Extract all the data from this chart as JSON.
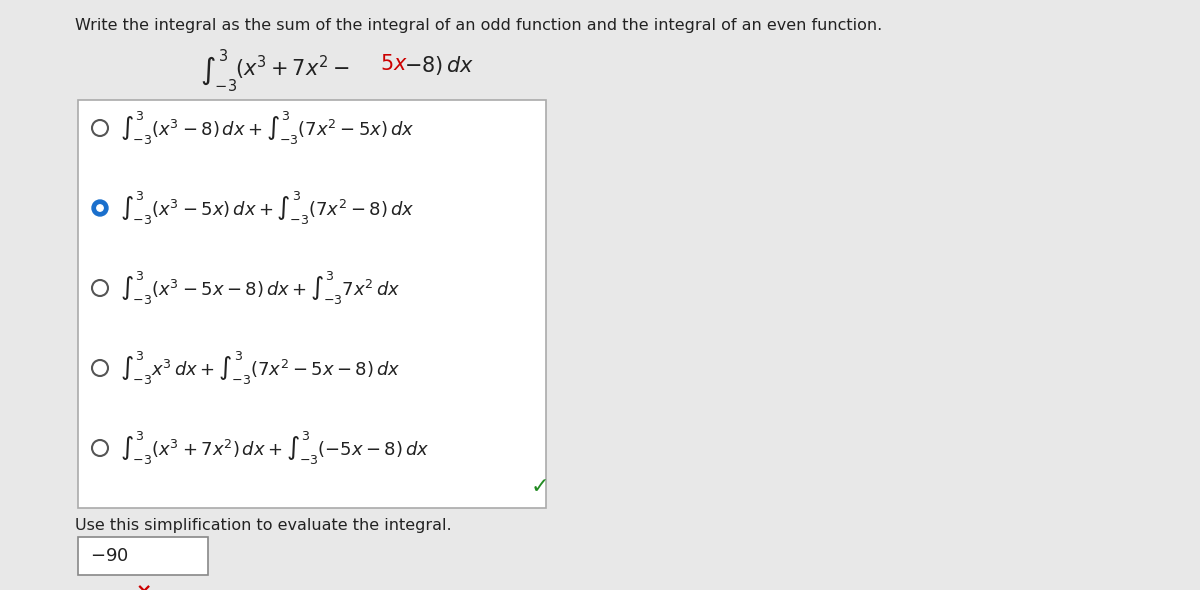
{
  "bg_color": "#e8e8e8",
  "box_bg": "#ffffff",
  "title": "Write the integral as the sum of the integral of an odd function and the integral of an even function.",
  "main_integral_parts": [
    {
      "text": "$\\int_{-3}^{3}$",
      "color": "#222222"
    },
    {
      "text": "$(x^3 + 7x^2 - $",
      "color": "#222222"
    },
    {
      "text": "$5x$",
      "color": "#cc0000"
    },
    {
      "text": "$ - 8)\\, dx$",
      "color": "#222222"
    }
  ],
  "options": [
    {
      "selected": false,
      "line1": "$\\int_{-3}^{3} (x^3 - 8)\\, dx + \\int_{-3}^{3} (7x^2 - 5x)\\, dx$"
    },
    {
      "selected": true,
      "line1": "$\\int_{-3}^{3} (x^3 - 5x)\\, dx + \\int_{-3}^{3} (7x^2 - 8)\\, dx$"
    },
    {
      "selected": false,
      "line1": "$\\int_{-3}^{3} (x^3 - 5x - 8)\\, dx + \\int_{-3}^{3} 7x^2\\, dx$"
    },
    {
      "selected": false,
      "line1": "$\\int_{-3}^{3} x^3\\, dx + \\int_{-3}^{3} (7x^2 - 5x - 8)\\, dx$"
    },
    {
      "selected": false,
      "line1": "$\\int_{-3}^{3} (x^3 + 7x^2)\\, dx + \\int_{-3}^{3} (-5x - 8)\\, dx$"
    }
  ],
  "simplification_label": "Use this simplification to evaluate the integral.",
  "answer": "$-90$",
  "checkmark_color": "#228B22",
  "x_color": "#cc0000",
  "radio_selected_color": "#1a6fcc",
  "radio_unselected_color": "#555555"
}
